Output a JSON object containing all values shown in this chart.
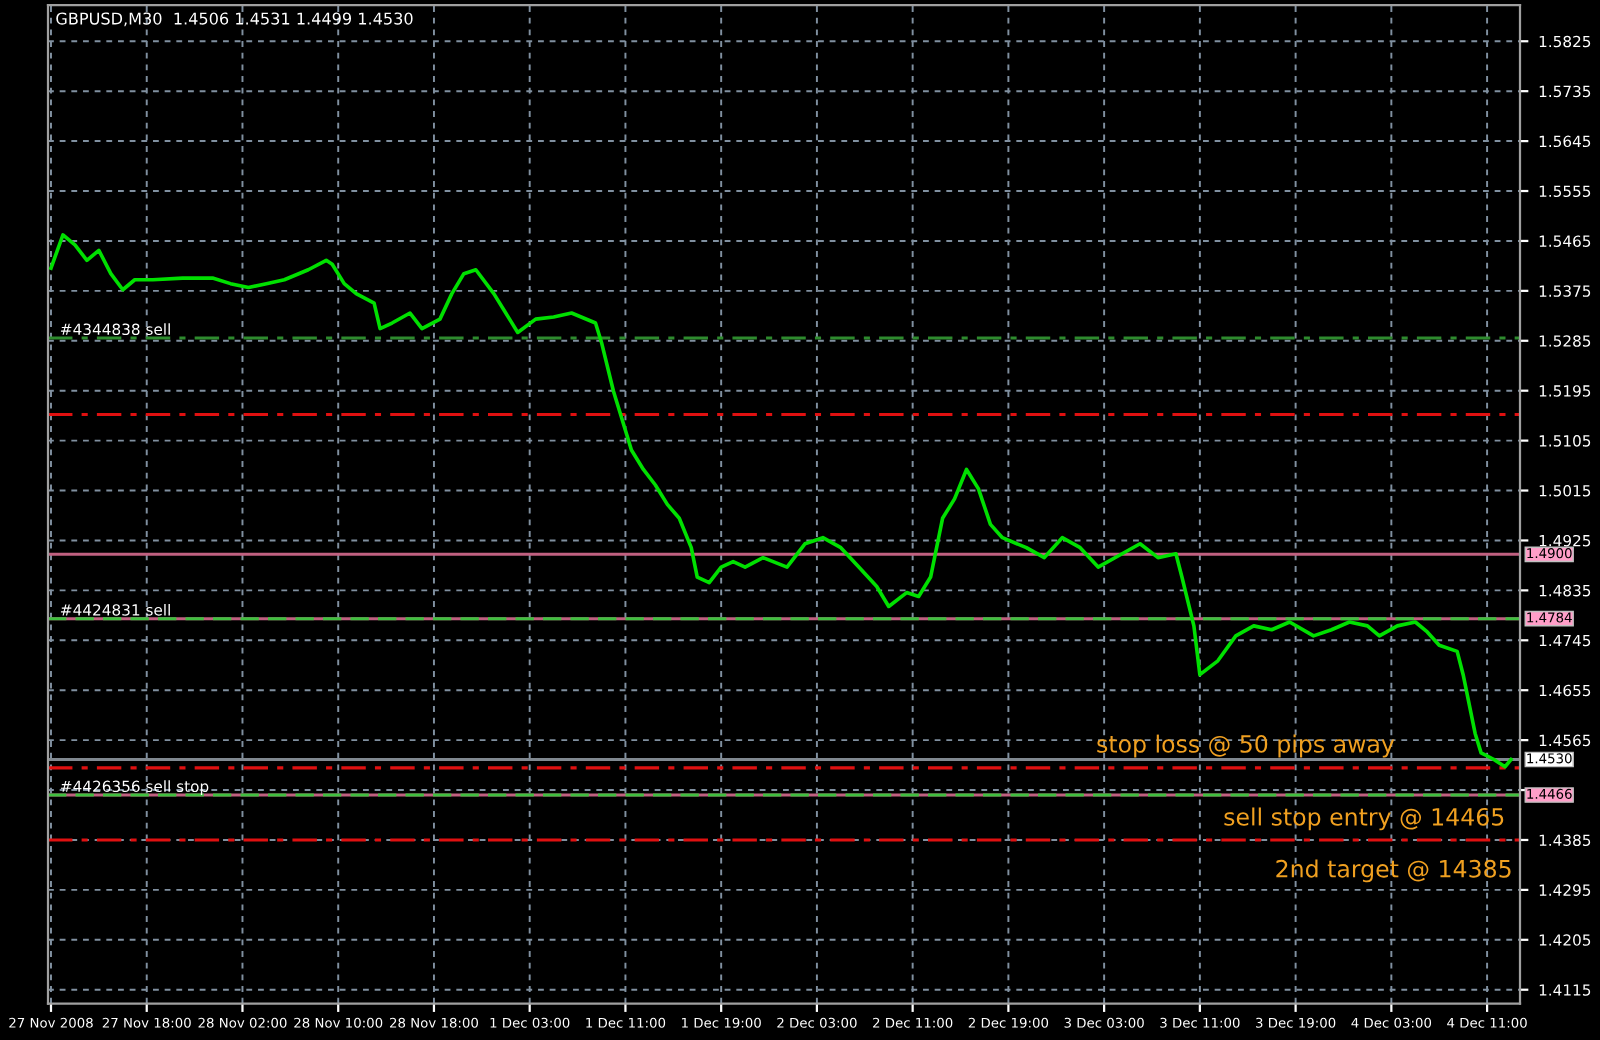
{
  "chart_data": {
    "type": "line",
    "title": "GBPUSD,M30  1.4506 1.4531 1.4499 1.4530",
    "categories": [
      "27 Nov 2008",
      null,
      null,
      null,
      null,
      null,
      null,
      null,
      null,
      null,
      null,
      null,
      null,
      null,
      null,
      null,
      "27 Nov 18:00",
      null,
      null,
      null,
      null,
      null,
      null,
      null,
      null,
      null,
      null,
      null,
      null,
      null,
      null,
      null,
      "28 Nov 02:00",
      null,
      null,
      null,
      null,
      null,
      null,
      null,
      null,
      null,
      null,
      null,
      null,
      null,
      null,
      null,
      "28 Nov 10:00",
      null,
      null,
      null,
      null,
      null,
      null,
      null,
      null,
      null,
      null,
      null,
      null,
      null,
      null,
      null,
      "28 Nov 18:00",
      null,
      null,
      null,
      null,
      null,
      null,
      null,
      null,
      null,
      null,
      null,
      null,
      null,
      null,
      null,
      "1 Dec 03:00",
      null,
      null,
      null,
      null,
      null,
      null,
      null,
      null,
      null,
      null,
      null,
      null,
      null,
      null,
      null,
      "1 Dec 11:00",
      null,
      null,
      null,
      null,
      null,
      null,
      null,
      null,
      null,
      null,
      null,
      null,
      null,
      null,
      null,
      "1 Dec 19:00",
      null,
      null,
      null,
      null,
      null,
      null,
      null,
      null,
      null,
      null,
      null,
      null,
      null,
      null,
      null,
      "2 Dec 03:00",
      null,
      null,
      null,
      null,
      null,
      null,
      null,
      null,
      null,
      null,
      null,
      null,
      null,
      null,
      null,
      "2 Dec 11:00",
      null,
      null,
      null,
      null,
      null,
      null,
      null,
      null,
      null,
      null,
      null,
      null,
      null,
      null,
      null,
      "2 Dec 19:00",
      null,
      null,
      null,
      null,
      null,
      null,
      null,
      null,
      null,
      null,
      null,
      null,
      null,
      null,
      null,
      "3 Dec 03:00",
      null,
      null,
      null,
      null,
      null,
      null,
      null,
      null,
      null,
      null,
      null,
      null,
      null,
      null,
      null,
      "3 Dec 11:00",
      null,
      null,
      null,
      null,
      null,
      null,
      null,
      null,
      null,
      null,
      null,
      null,
      null,
      null,
      null,
      "3 Dec 19:00",
      null,
      null,
      null,
      null,
      null,
      null,
      null,
      null,
      null,
      null,
      null,
      null,
      null,
      null,
      null,
      "4 Dec 03:00",
      null,
      null,
      null,
      null,
      null,
      null,
      null,
      null,
      null,
      null,
      null,
      null,
      null,
      null,
      null,
      "4 Dec 11:00",
      null,
      null,
      null,
      null,
      null
    ],
    "series": [
      {
        "color": "#00e000",
        "values": [
          1.5416,
          null,
          1.5476,
          null,
          1.5458,
          null,
          1.543,
          null,
          1.5448,
          null,
          1.5406,
          null,
          1.5377,
          null,
          1.5395,
          null,
          null,
          1.5395,
          null,
          null,
          null,
          null,
          1.5398,
          null,
          null,
          null,
          null,
          1.5398,
          null,
          null,
          1.5388,
          null,
          null,
          1.5381,
          null,
          null,
          1.5388,
          null,
          null,
          1.5395,
          null,
          null,
          null,
          1.5413,
          null,
          null,
          1.543,
          1.5423,
          null,
          1.5388,
          null,
          1.537,
          null,
          null,
          1.5353,
          1.5307,
          null,
          1.5317,
          null,
          null,
          1.5335,
          null,
          1.5307,
          null,
          null,
          1.5324,
          null,
          1.537,
          null,
          1.5406,
          null,
          1.5413,
          null,
          null,
          1.537,
          null,
          1.5335,
          null,
          1.53,
          null,
          null,
          1.5324,
          null,
          null,
          1.5328,
          null,
          null,
          1.5335,
          null,
          null,
          null,
          1.5317,
          1.5282,
          null,
          1.5194,
          1.5159,
          null,
          1.5088,
          null,
          1.5053,
          null,
          1.5025,
          null,
          1.499,
          null,
          1.4965,
          null,
          1.4912,
          1.4859,
          null,
          1.4849,
          null,
          1.4877,
          null,
          1.4887,
          null,
          1.4877,
          null,
          null,
          1.4894,
          null,
          null,
          null,
          1.4877,
          null,
          null,
          1.4919,
          null,
          null,
          1.493,
          null,
          null,
          1.4912,
          null,
          null,
          1.4877,
          null,
          null,
          1.4842,
          null,
          1.4806,
          null,
          null,
          1.4831,
          null,
          1.4824,
          null,
          1.4859,
          null,
          1.4965,
          null,
          1.5,
          null,
          1.5053,
          null,
          1.5018,
          null,
          1.4954,
          null,
          1.493,
          null,
          null,
          null,
          1.4912,
          null,
          null,
          1.4894,
          null,
          null,
          1.493,
          null,
          null,
          1.4912,
          null,
          null,
          1.4877,
          null,
          null,
          null,
          1.4901,
          null,
          null,
          1.4919,
          null,
          null,
          1.4894,
          null,
          null,
          1.4901,
          1.4859,
          null,
          1.4771,
          1.4683,
          null,
          null,
          1.4708,
          null,
          null,
          1.4753,
          null,
          null,
          1.4771,
          null,
          null,
          1.4764,
          null,
          null,
          1.4778,
          null,
          null,
          null,
          1.4753,
          null,
          null,
          1.4764,
          null,
          null,
          1.4778,
          null,
          null,
          1.4771,
          null,
          1.4753,
          null,
          null,
          1.4771,
          null,
          null,
          1.4778,
          null,
          1.476,
          null,
          1.4736,
          null,
          null,
          1.4725,
          1.4683,
          null,
          1.4577,
          1.4542,
          null,
          1.4531,
          null,
          1.4517,
          1.453,
          null
        ]
      }
    ],
    "ylim": [
      1.409,
      1.589
    ],
    "yticks": [
      1.5825,
      1.5735,
      1.5645,
      1.5555,
      1.5465,
      1.5375,
      1.5285,
      1.5195,
      1.5105,
      1.5015,
      1.4925,
      1.4835,
      1.4745,
      1.4655,
      1.4565,
      {
        "value": 1.4475,
        "label": null
      },
      1.4385,
      1.4295,
      1.4205,
      1.4115
    ],
    "grid": true,
    "ref_lines": [
      {
        "axis": "y",
        "value": 1.529,
        "label": "#4344838 sell",
        "color": "#2e8b2e",
        "line_style": "dashdot"
      },
      {
        "axis": "y",
        "value": 1.5152,
        "label": null,
        "color": "#e01010",
        "line_style": "dashdot"
      },
      {
        "axis": "y",
        "value": 1.49,
        "label": "1.4900",
        "color": "#c06080",
        "line_style": "solid"
      },
      {
        "axis": "y",
        "value": 1.4784,
        "label": "1.4784",
        "color": "#c06080",
        "line_style": "solid"
      },
      {
        "axis": "y",
        "value": 1.4784,
        "label": "#4424831 sell",
        "color": "#40c040",
        "line_style": "dashed"
      },
      {
        "axis": "y",
        "value": 1.453,
        "label": "1.4530",
        "color": "#808890",
        "line_style": "solid"
      },
      {
        "axis": "y",
        "value": 1.4515,
        "label": null,
        "color": "#e01010",
        "line_style": "dashdot"
      },
      {
        "axis": "y",
        "value": 1.4466,
        "label": "1.4466",
        "color": "#c06080",
        "line_style": "solid"
      },
      {
        "axis": "y",
        "value": 1.4466,
        "label": "#4426356 sell stop",
        "color": "#40c040",
        "line_style": "dashed"
      },
      {
        "axis": "y",
        "value": 1.4385,
        "label": null,
        "color": "#e01010",
        "line_style": "dashdot"
      }
    ],
    "annotations": [
      "stop loss @ 50 pips away",
      "sell stop entry @ 14465",
      "2nd target @ 14385"
    ]
  }
}
